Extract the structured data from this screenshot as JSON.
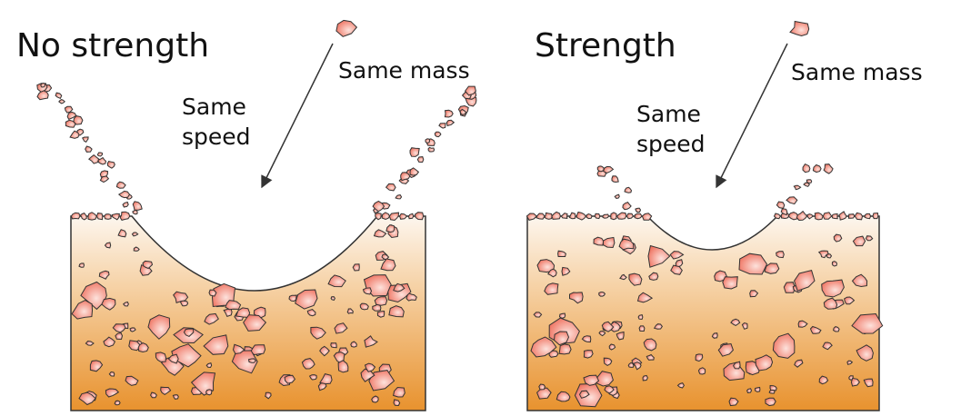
{
  "panels": [
    {
      "title": "No strength",
      "mass_label": "Same mass",
      "speed_label": "Same speed"
    },
    {
      "title": "Strength",
      "mass_label": "Same mass",
      "speed_label": "Same speed"
    }
  ]
}
